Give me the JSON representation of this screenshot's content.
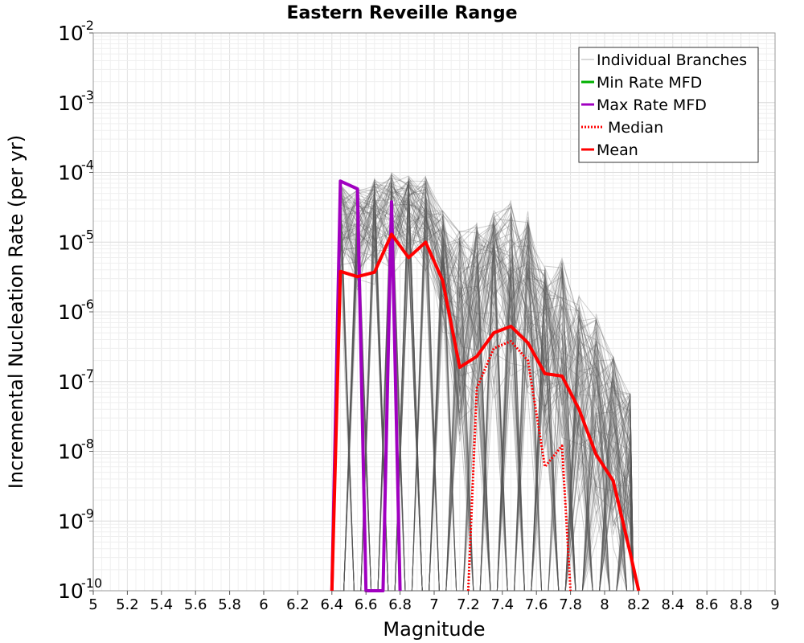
{
  "chart_data": {
    "type": "line",
    "title": "Eastern Reveille Range",
    "xlabel": "Magnitude",
    "ylabel": "Incremental Nucleation Rate (per yr)",
    "xlim": [
      5,
      9
    ],
    "ylim": [
      1e-10,
      0.01
    ],
    "yscale": "log",
    "grid": true,
    "legend_position": "top-right",
    "x_ticks": [
      5,
      5.2,
      5.4,
      5.6,
      5.8,
      6,
      6.2,
      6.4,
      6.6,
      6.8,
      7,
      7.2,
      7.4,
      7.6,
      7.8,
      8,
      8.2,
      8.4,
      8.6,
      8.8,
      9
    ],
    "x_tick_labels": [
      "5",
      "5.2",
      "5.4",
      "5.6",
      "5.8",
      "6",
      "6.2",
      "6.4",
      "6.6",
      "6.8",
      "7",
      "7.2",
      "7.4",
      "7.6",
      "7.8",
      "8",
      "8.2",
      "8.4",
      "8.6",
      "8.8",
      "9"
    ],
    "y_ticks": [
      {
        "value": 0.01,
        "base": "10",
        "exp": "-2"
      },
      {
        "value": 0.001,
        "base": "10",
        "exp": "-3"
      },
      {
        "value": 0.0001,
        "base": "10",
        "exp": "-4"
      },
      {
        "value": 1e-05,
        "base": "10",
        "exp": "-5"
      },
      {
        "value": 1e-06,
        "base": "10",
        "exp": "-6"
      },
      {
        "value": 1e-07,
        "base": "10",
        "exp": "-7"
      },
      {
        "value": 1e-08,
        "base": "10",
        "exp": "-8"
      },
      {
        "value": 1e-09,
        "base": "10",
        "exp": "-9"
      },
      {
        "value": 1e-10,
        "base": "10",
        "exp": "-10"
      }
    ],
    "series": [
      {
        "name": "Min Rate MFD",
        "color": "#00b000",
        "style": "solid",
        "points": []
      },
      {
        "name": "Max Rate MFD",
        "color": "#a000c0",
        "style": "solid",
        "points": [
          [
            6.4,
            1e-10
          ],
          [
            6.45,
            7.5e-05
          ],
          [
            6.55,
            5.8e-05
          ],
          [
            6.6,
            1e-10
          ],
          [
            6.7,
            1e-10
          ],
          [
            6.75,
            3.8e-05
          ],
          [
            6.8,
            1e-10
          ]
        ]
      },
      {
        "name": "Median",
        "color": "#ff0000",
        "style": "dotted",
        "points": [
          [
            7.2,
            1e-10
          ],
          [
            7.25,
            8e-08
          ],
          [
            7.35,
            3e-07
          ],
          [
            7.45,
            3.8e-07
          ],
          [
            7.55,
            2e-07
          ],
          [
            7.65,
            6e-09
          ],
          [
            7.75,
            1.2e-08
          ],
          [
            7.8,
            1e-10
          ]
        ]
      },
      {
        "name": "Mean",
        "color": "#ff0000",
        "style": "solid",
        "points": [
          [
            6.4,
            1e-10
          ],
          [
            6.45,
            3.8e-06
          ],
          [
            6.55,
            3.2e-06
          ],
          [
            6.65,
            3.7e-06
          ],
          [
            6.75,
            1.3e-05
          ],
          [
            6.85,
            6e-06
          ],
          [
            6.95,
            1e-05
          ],
          [
            7.05,
            2.8e-06
          ],
          [
            7.15,
            1.6e-07
          ],
          [
            7.25,
            2.3e-07
          ],
          [
            7.35,
            5e-07
          ],
          [
            7.45,
            6.2e-07
          ],
          [
            7.55,
            3.6e-07
          ],
          [
            7.65,
            1.3e-07
          ],
          [
            7.75,
            1.2e-07
          ],
          [
            7.85,
            4e-08
          ],
          [
            7.95,
            9e-09
          ],
          [
            8.05,
            3.8e-09
          ],
          [
            8.15,
            3.5e-10
          ],
          [
            8.2,
            1e-10
          ]
        ]
      }
    ],
    "individual_branches": {
      "name": "Individual Branches",
      "color": "#555555",
      "peaks": [
        {
          "x": 6.45,
          "min": 3e-06,
          "max": 7e-05
        },
        {
          "x": 6.55,
          "min": 2e-06,
          "max": 6e-05
        },
        {
          "x": 6.65,
          "min": 2e-06,
          "max": 9e-05
        },
        {
          "x": 6.75,
          "min": 3e-06,
          "max": 0.0001
        },
        {
          "x": 6.85,
          "min": 3e-06,
          "max": 9e-05
        },
        {
          "x": 6.95,
          "min": 3e-06,
          "max": 9e-05
        },
        {
          "x": 7.05,
          "min": 4e-07,
          "max": 3e-05
        },
        {
          "x": 7.15,
          "min": 1e-08,
          "max": 1.5e-05
        },
        {
          "x": 7.25,
          "min": 2e-08,
          "max": 2e-05
        },
        {
          "x": 7.35,
          "min": 5e-08,
          "max": 3e-05
        },
        {
          "x": 7.45,
          "min": 8e-08,
          "max": 4e-05
        },
        {
          "x": 7.55,
          "min": 4e-08,
          "max": 2.8e-05
        },
        {
          "x": 7.65,
          "min": 1e-08,
          "max": 5e-06
        },
        {
          "x": 7.75,
          "min": 3e-09,
          "max": 6e-06
        },
        {
          "x": 7.85,
          "min": 1e-09,
          "max": 2e-06
        },
        {
          "x": 7.95,
          "min": 4e-10,
          "max": 1e-06
        },
        {
          "x": 8.05,
          "min": 3e-10,
          "max": 2.5e-07
        },
        {
          "x": 8.15,
          "min": 2e-10,
          "max": 7e-08
        }
      ]
    },
    "legend": [
      {
        "label": "Individual Branches",
        "color": "#b0b0b0",
        "style": "thin"
      },
      {
        "label": "Min Rate MFD",
        "color": "#00b000",
        "style": "solid"
      },
      {
        "label": "Max Rate MFD",
        "color": "#a000c0",
        "style": "solid"
      },
      {
        "label": "Median",
        "color": "#ff0000",
        "style": "dotted"
      },
      {
        "label": "Mean",
        "color": "#ff0000",
        "style": "solid"
      }
    ]
  }
}
